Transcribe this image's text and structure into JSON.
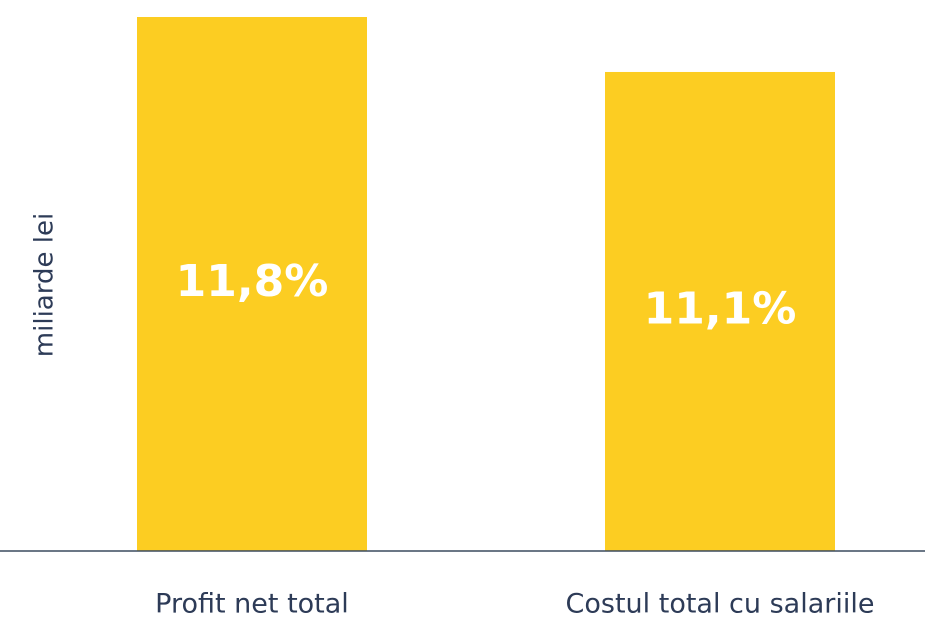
{
  "chart_data": {
    "type": "bar",
    "y_label": "miliarde lei",
    "categories": [
      "Profit net total",
      "Costul total cu salariile"
    ],
    "values": [
      11.8,
      11.1
    ],
    "value_labels": [
      "11,8%",
      "11,1%"
    ],
    "color": "#fccd22",
    "ylim": [
      5,
      12
    ]
  }
}
